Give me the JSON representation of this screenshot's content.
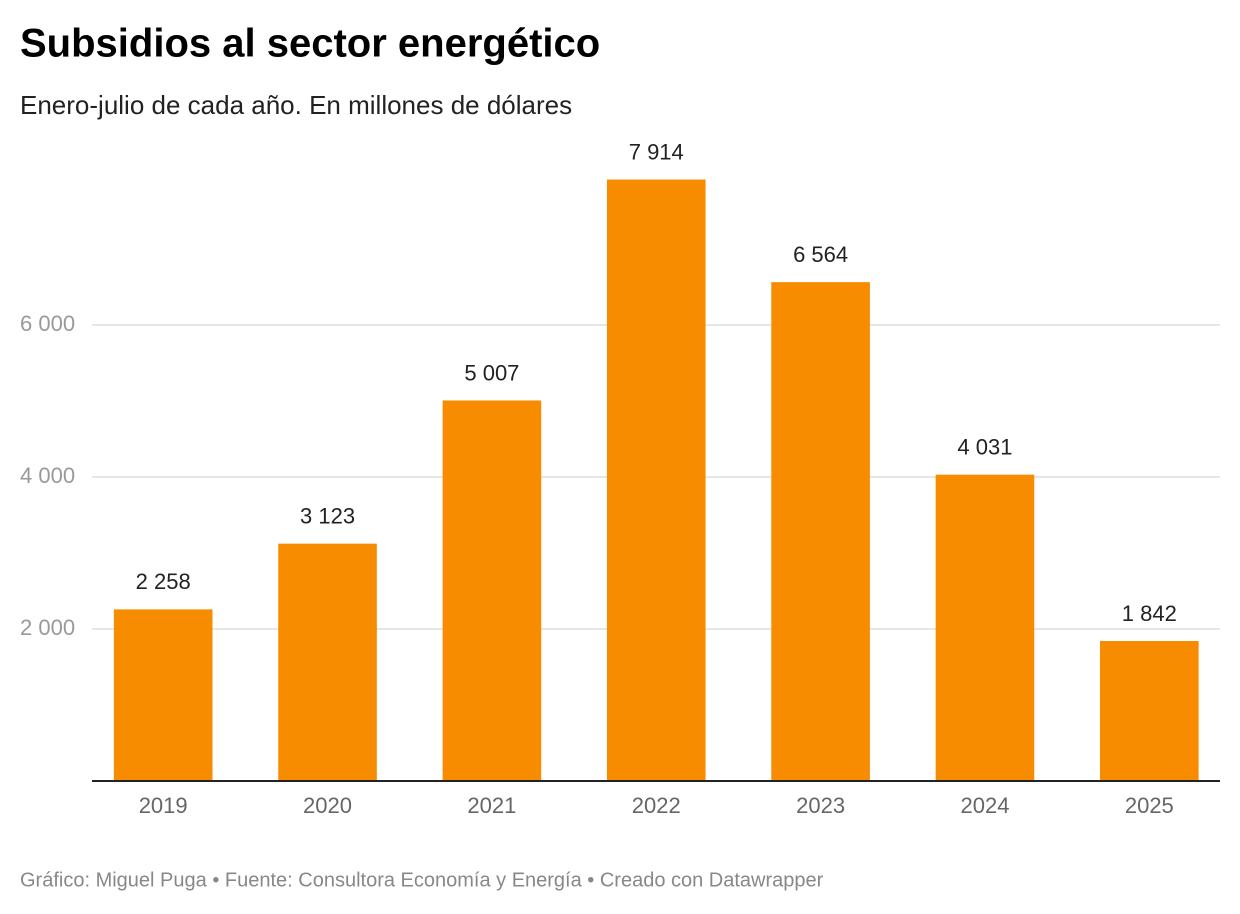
{
  "chart_data": {
    "type": "bar",
    "title": "Subsidios al sector energético",
    "subtitle": "Enero-julio de cada año. En millones de dólares",
    "categories": [
      "2019",
      "2020",
      "2021",
      "2022",
      "2023",
      "2024",
      "2025"
    ],
    "values": [
      2258,
      3123,
      5007,
      7914,
      6564,
      4031,
      1842
    ],
    "value_labels": [
      "2 258",
      "3 123",
      "5 007",
      "7 914",
      "6 564",
      "4 031",
      "1 842"
    ],
    "color": "#f78c00",
    "ylim": [
      0,
      8000
    ],
    "yticks": [
      {
        "value": 2000,
        "label": "2 000"
      },
      {
        "value": 4000,
        "label": "4 000"
      },
      {
        "value": 6000,
        "label": "6 000"
      }
    ],
    "grid": true,
    "footer": "Gráfico: Miguel Puga • Fuente: Consultora Economía y Energía • Creado con Datawrapper"
  }
}
